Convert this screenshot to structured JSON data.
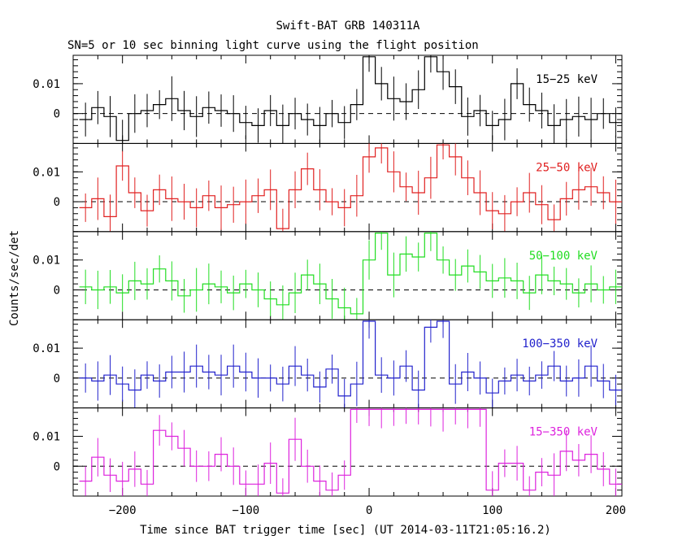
{
  "chart_data": {
    "type": "line",
    "title": "Swift-BAT GRB 140311A",
    "subtitle": "SN=5 or 10 sec binning light curve using the flight position",
    "xlabel": "Time since BAT trigger time [sec] (UT 2014-03-11T21:05:16.2)",
    "ylabel": "Counts/sec/det",
    "xlim": [
      -240,
      205
    ],
    "ylim": [
      -0.01,
      0.0195
    ],
    "x_ticks": [
      -200,
      -100,
      0,
      100,
      200
    ],
    "x_tick_labels": [
      "−200",
      "−100",
      "0",
      "100",
      "200"
    ],
    "y_ticks": [
      0,
      0.01
    ],
    "y_tick_labels": [
      "0",
      "0.01"
    ],
    "zero_line": "dashed",
    "bin_start": -235,
    "bin_width": 10,
    "series": [
      {
        "name": "15−25 keV",
        "color": "#000000",
        "values": [
          -0.002,
          0.002,
          -0.001,
          -0.009,
          0.0,
          0.001,
          0.003,
          0.005,
          0.001,
          -0.001,
          0.002,
          0.001,
          0.0,
          -0.003,
          -0.004,
          0.001,
          -0.004,
          0.0,
          -0.002,
          -0.004,
          0.0,
          -0.003,
          0.003,
          0.019,
          0.01,
          0.005,
          0.004,
          0.008,
          0.019,
          0.014,
          0.009,
          -0.001,
          0.001,
          -0.004,
          -0.002,
          0.01,
          0.003,
          0.001,
          -0.004,
          -0.002,
          -0.001,
          -0.002,
          0.0,
          -0.003
        ]
      },
      {
        "name": "25−50 keV",
        "color": "#e02020",
        "values": [
          -0.002,
          0.001,
          -0.005,
          0.012,
          0.003,
          -0.003,
          0.004,
          0.001,
          0.0,
          -0.002,
          0.002,
          -0.002,
          -0.001,
          0.0,
          0.002,
          0.004,
          -0.009,
          0.004,
          0.011,
          0.004,
          0.0,
          -0.002,
          0.002,
          0.015,
          0.018,
          0.01,
          0.005,
          0.003,
          0.008,
          0.019,
          0.015,
          0.008,
          0.003,
          -0.003,
          -0.004,
          0.0,
          0.003,
          -0.001,
          -0.006,
          0.001,
          0.004,
          0.005,
          0.003,
          0.0
        ]
      },
      {
        "name": "50−100 keV",
        "color": "#22dd22",
        "values": [
          0.001,
          0.0,
          0.001,
          -0.001,
          0.003,
          0.002,
          0.007,
          0.003,
          -0.002,
          0.0,
          0.002,
          0.001,
          -0.001,
          0.002,
          0.0,
          -0.003,
          -0.005,
          -0.001,
          0.005,
          0.002,
          -0.003,
          -0.006,
          -0.008,
          0.01,
          0.019,
          0.005,
          0.012,
          0.011,
          0.019,
          0.01,
          0.005,
          0.008,
          0.006,
          0.003,
          0.004,
          0.003,
          -0.001,
          0.005,
          0.003,
          0.002,
          -0.001,
          0.002,
          0.0,
          0.001
        ]
      },
      {
        "name": "100−350 keV",
        "color": "#2222cc",
        "values": [
          0.0,
          -0.001,
          0.001,
          -0.002,
          -0.004,
          0.001,
          -0.001,
          0.002,
          0.002,
          0.004,
          0.002,
          0.001,
          0.004,
          0.002,
          0.0,
          0.0,
          -0.002,
          0.004,
          0.001,
          -0.003,
          0.003,
          -0.006,
          -0.002,
          0.019,
          0.001,
          0.0,
          0.004,
          -0.004,
          0.017,
          0.019,
          -0.002,
          0.002,
          0.0,
          -0.005,
          -0.001,
          0.001,
          -0.001,
          0.001,
          0.004,
          -0.001,
          0.0,
          0.004,
          -0.001,
          -0.004
        ]
      },
      {
        "name": "15−350 keV",
        "color": "#dd22dd",
        "values": [
          -0.005,
          0.003,
          -0.003,
          -0.005,
          -0.001,
          -0.006,
          0.012,
          0.01,
          0.006,
          0.0,
          0.0,
          0.004,
          0.0,
          -0.006,
          -0.006,
          0.001,
          -0.009,
          0.009,
          0.0,
          -0.005,
          -0.008,
          -0.003,
          0.019,
          0.019,
          0.019,
          0.019,
          0.019,
          0.019,
          0.019,
          0.019,
          0.019,
          0.019,
          0.019,
          -0.008,
          0.001,
          0.001,
          -0.008,
          -0.002,
          -0.003,
          0.005,
          0.002,
          0.004,
          -0.001,
          -0.006
        ]
      }
    ]
  }
}
